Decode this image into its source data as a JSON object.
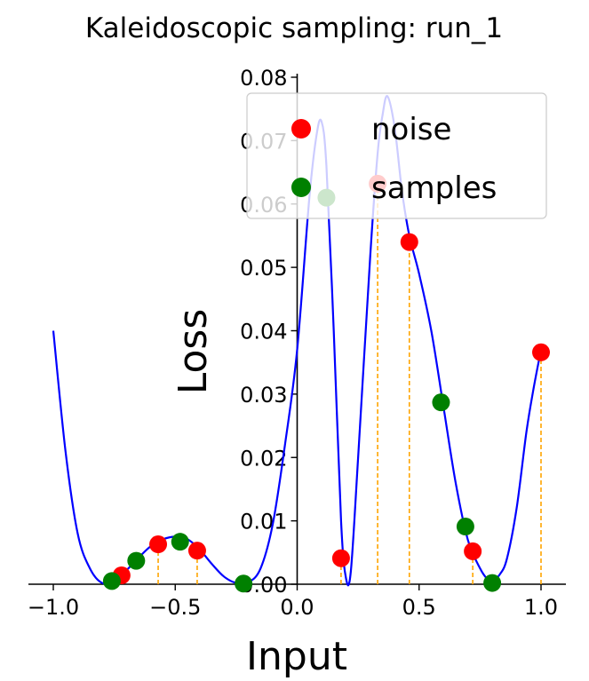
{
  "chart_data": {
    "type": "scatter",
    "title": "Kaleidoscopic sampling: run_1",
    "xlabel": "Input",
    "ylabel": "Loss",
    "xlim": [
      -1.0,
      1.0
    ],
    "ylim": [
      0.0,
      0.08
    ],
    "xticks": [
      -1.0,
      -0.5,
      0.0,
      0.5,
      1.0
    ],
    "yticks": [
      0.0,
      0.01,
      0.02,
      0.03,
      0.04,
      0.05,
      0.06,
      0.07,
      0.08
    ],
    "xtick_labels": [
      "−1.0",
      "−0.5",
      "0.0",
      "0.5",
      "1.0"
    ],
    "ytick_labels": [
      "0.00",
      "0.01",
      "0.02",
      "0.03",
      "0.04",
      "0.05",
      "0.06",
      "0.07",
      "0.08"
    ],
    "grid": false,
    "legend_position": "top-right",
    "curve": {
      "color": "#0000ff",
      "x": [
        -1.0,
        -0.95,
        -0.9,
        -0.85,
        -0.8,
        -0.75,
        -0.7,
        -0.65,
        -0.6,
        -0.55,
        -0.5,
        -0.45,
        -0.4,
        -0.35,
        -0.3,
        -0.25,
        -0.2,
        -0.15,
        -0.1,
        -0.05,
        0.0,
        0.05,
        0.08,
        0.1,
        0.12,
        0.15,
        0.18,
        0.2,
        0.22,
        0.25,
        0.3,
        0.33,
        0.35,
        0.37,
        0.4,
        0.43,
        0.46,
        0.5,
        0.55,
        0.6,
        0.65,
        0.7,
        0.75,
        0.78,
        0.8,
        0.83,
        0.86,
        0.9,
        0.94,
        0.97,
        1.0
      ],
      "y": [
        0.04,
        0.021,
        0.008,
        0.0025,
        0.0002,
        0.0006,
        0.0022,
        0.0042,
        0.006,
        0.0071,
        0.0075,
        0.0071,
        0.0055,
        0.0032,
        0.0012,
        0.0002,
        0.0003,
        0.0025,
        0.0095,
        0.022,
        0.037,
        0.061,
        0.071,
        0.073,
        0.066,
        0.04,
        0.01,
        0.001,
        0.002,
        0.02,
        0.052,
        0.068,
        0.074,
        0.077,
        0.072,
        0.062,
        0.055,
        0.049,
        0.04,
        0.028,
        0.016,
        0.007,
        0.0025,
        0.0008,
        0.0005,
        0.0015,
        0.004,
        0.012,
        0.024,
        0.031,
        0.037
      ]
    },
    "series": [
      {
        "name": "noise",
        "color": "#ff0000",
        "x": [
          -0.72,
          -0.57,
          -0.41,
          0.18,
          0.33,
          0.46,
          0.72,
          1.0
        ],
        "y": [
          0.0014,
          0.0063,
          0.0053,
          0.0041,
          0.0632,
          0.054,
          0.0052,
          0.0366
        ]
      },
      {
        "name": "samples",
        "color": "#008000",
        "x": [
          -0.76,
          -0.66,
          -0.48,
          -0.22,
          0.12,
          0.59,
          0.69,
          0.8
        ],
        "y": [
          0.0005,
          0.0037,
          0.0067,
          0.0001,
          0.061,
          0.0287,
          0.0091,
          0.0002
        ]
      }
    ],
    "stems": {
      "color": "#ffa500",
      "x": [
        -0.57,
        -0.41,
        0.18,
        0.33,
        0.46,
        0.72,
        1.0
      ],
      "y": [
        0.0063,
        0.0053,
        0.0041,
        0.0632,
        0.054,
        0.0052,
        0.0366
      ]
    }
  }
}
